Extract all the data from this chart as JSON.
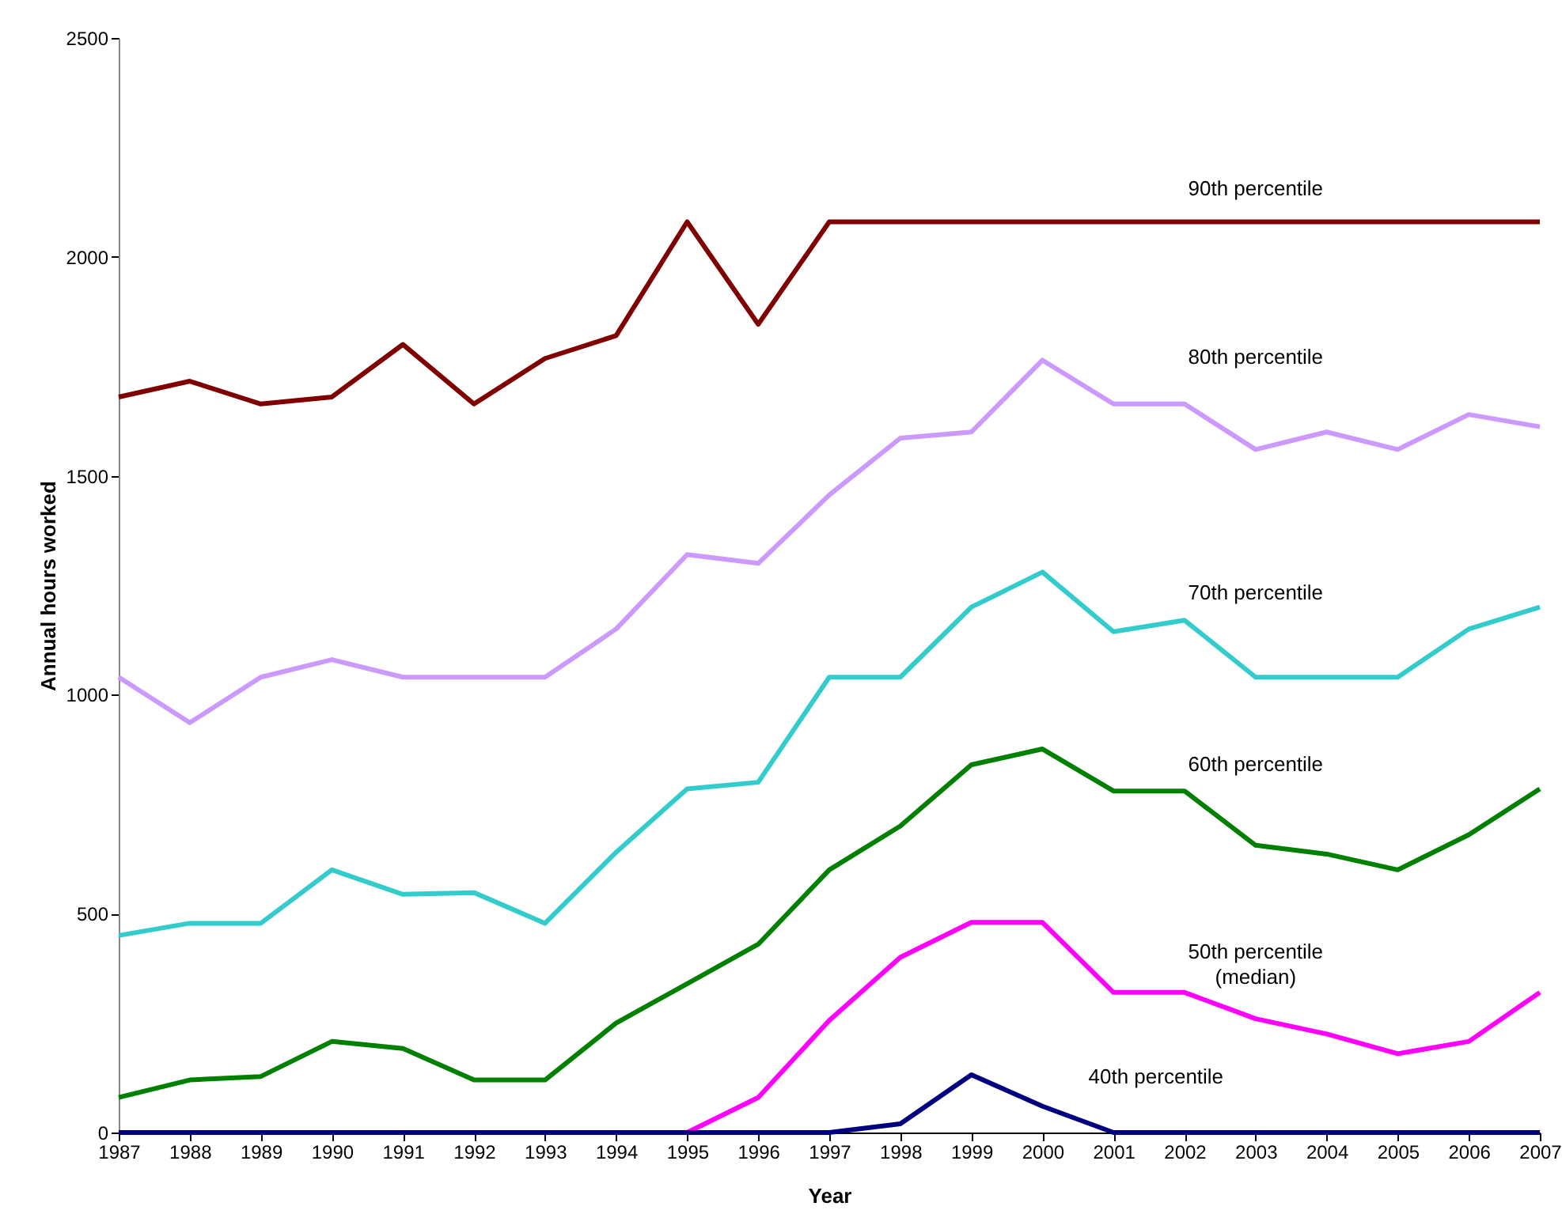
{
  "chart_data": {
    "type": "line",
    "xlabel": "Year",
    "ylabel": "Annual hours worked",
    "categories": [
      "1987",
      "1988",
      "1989",
      "1990",
      "1991",
      "1992",
      "1993",
      "1994",
      "1995",
      "1996",
      "1997",
      "1998",
      "1999",
      "2000",
      "2001",
      "2002",
      "2003",
      "2004",
      "2005",
      "2006",
      "2007"
    ],
    "ylim": [
      0,
      2500
    ],
    "yticks": [
      0,
      500,
      {
        "value": 1000,
        "label": "1000"
      },
      {
        "value": 1500,
        "label": "1500"
      },
      {
        "value": 2000,
        "label": "2000"
      },
      {
        "value": 2500,
        "label": "2500"
      }
    ],
    "marker": "none",
    "line_style": "solid",
    "series": [
      {
        "name": "90th percentile",
        "color": "#800000",
        "values": [
          1680,
          1716,
          1664,
          1680,
          1800,
          1664,
          1768,
          1820,
          2080,
          1846,
          2080,
          2080,
          2080,
          2080,
          2080,
          2080,
          2080,
          2080,
          2080,
          2080,
          2080
        ]
      },
      {
        "name": "80th percentile",
        "color": "#cc99ff",
        "values": [
          1040,
          936,
          1040,
          1080,
          1040,
          1040,
          1040,
          1150,
          1320,
          1300,
          1456,
          1586,
          1600,
          1764,
          1664,
          1664,
          1560,
          1600,
          1560,
          1640,
          1612
        ]
      },
      {
        "name": "70th percentile",
        "color": "#33cccc",
        "values": [
          450,
          478,
          478,
          600,
          544,
          548,
          478,
          640,
          785,
          800,
          1040,
          1040,
          1200,
          1280,
          1144,
          1170,
          1040,
          1040,
          1040,
          1150,
          1200
        ]
      },
      {
        "name": "60th percentile",
        "color": "#008000",
        "values": [
          80,
          120,
          128,
          208,
          192,
          120,
          120,
          250,
          340,
          430,
          600,
          700,
          840,
          876,
          780,
          780,
          656,
          636,
          600,
          680,
          785
        ]
      },
      {
        "name": "50th percentile (median)",
        "color": "#ff00ff",
        "values": [
          null,
          null,
          null,
          null,
          null,
          null,
          null,
          null,
          0,
          80,
          256,
          400,
          480,
          480,
          320,
          320,
          260,
          225,
          180,
          208,
          320
        ]
      },
      {
        "name": "40th percentile",
        "color": "#000080",
        "values": [
          0,
          0,
          0,
          0,
          0,
          0,
          0,
          0,
          0,
          0,
          0,
          20,
          132,
          60,
          0,
          0,
          0,
          0,
          0,
          0,
          0
        ]
      }
    ]
  }
}
